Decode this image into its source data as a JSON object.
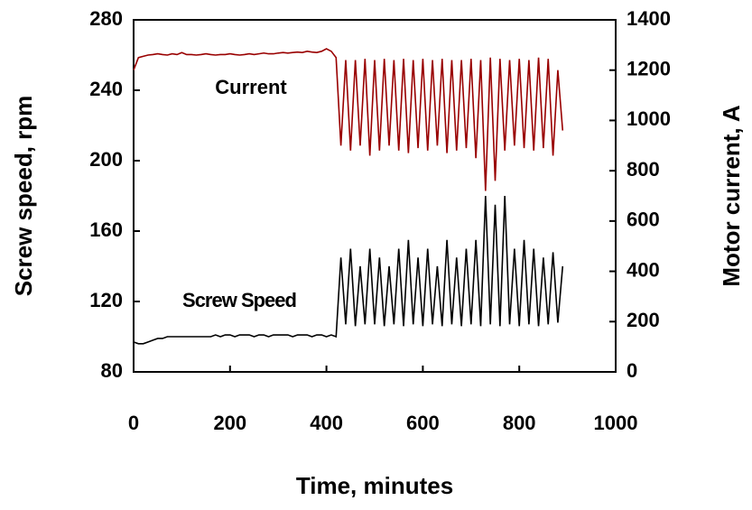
{
  "chart_data": {
    "type": "line",
    "xlabel": "Time, minutes",
    "ylabel": "Screw speed, rpm",
    "y2label": "Motor current, A",
    "annotations": [
      "Current",
      "Screw Speed"
    ],
    "x": [
      0,
      10,
      20,
      30,
      40,
      50,
      60,
      70,
      80,
      90,
      100,
      110,
      120,
      130,
      140,
      150,
      160,
      170,
      180,
      190,
      200,
      210,
      220,
      230,
      240,
      250,
      260,
      270,
      280,
      290,
      300,
      310,
      320,
      330,
      340,
      350,
      360,
      370,
      380,
      390,
      400,
      410,
      420,
      430,
      440,
      450,
      460,
      470,
      480,
      490,
      500,
      510,
      520,
      530,
      540,
      550,
      560,
      570,
      580,
      590,
      600,
      610,
      620,
      630,
      640,
      650,
      660,
      670,
      680,
      690,
      700,
      710,
      720,
      730,
      740,
      750,
      760,
      770,
      780,
      790,
      800,
      810,
      820,
      830,
      840,
      850,
      860,
      870,
      880,
      890
    ],
    "series": [
      {
        "name": "Current",
        "color": "#990000",
        "axis": "y2",
        "values": [
          1200,
          1250,
          1255,
          1260,
          1262,
          1265,
          1262,
          1260,
          1265,
          1262,
          1270,
          1262,
          1262,
          1260,
          1262,
          1265,
          1262,
          1260,
          1262,
          1262,
          1265,
          1262,
          1260,
          1262,
          1265,
          1262,
          1265,
          1268,
          1265,
          1265,
          1268,
          1270,
          1268,
          1270,
          1272,
          1270,
          1275,
          1272,
          1270,
          1275,
          1285,
          1275,
          1250,
          900,
          1240,
          880,
          1240,
          900,
          1245,
          860,
          1240,
          880,
          1245,
          900,
          1240,
          880,
          1245,
          870,
          1240,
          890,
          1245,
          880,
          1240,
          900,
          1245,
          870,
          1240,
          880,
          1240,
          890,
          1245,
          850,
          1240,
          720,
          1250,
          760,
          1245,
          880,
          1240,
          900,
          1245,
          890,
          1240,
          880,
          1250,
          890,
          1245,
          860,
          1200,
          960
        ]
      },
      {
        "name": "Screw Speed",
        "color": "#000000",
        "values": [
          97,
          96,
          96,
          97,
          98,
          99,
          99,
          100,
          100,
          100,
          100,
          100,
          100,
          100,
          100,
          100,
          100,
          101,
          100,
          101,
          101,
          100,
          101,
          101,
          101,
          100,
          101,
          101,
          100,
          101,
          101,
          101,
          101,
          100,
          101,
          101,
          101,
          100,
          101,
          101,
          100,
          101,
          100,
          145,
          107,
          150,
          106,
          140,
          107,
          150,
          107,
          145,
          106,
          140,
          107,
          150,
          106,
          155,
          107,
          145,
          106,
          150,
          107,
          140,
          106,
          155,
          107,
          145,
          106,
          150,
          107,
          155,
          106,
          180,
          107,
          175,
          106,
          180,
          107,
          150,
          106,
          155,
          107,
          150,
          106,
          145,
          107,
          148,
          108,
          140
        ]
      }
    ],
    "xlim": [
      0,
      1000
    ],
    "xticks": [
      0,
      200,
      400,
      600,
      800,
      1000
    ],
    "ylim": [
      80,
      280
    ],
    "yticks": [
      80,
      120,
      160,
      200,
      240,
      280
    ],
    "y2lim": [
      0,
      1400
    ],
    "y2ticks": [
      0,
      200,
      400,
      600,
      800,
      1000,
      1200,
      1400
    ]
  }
}
